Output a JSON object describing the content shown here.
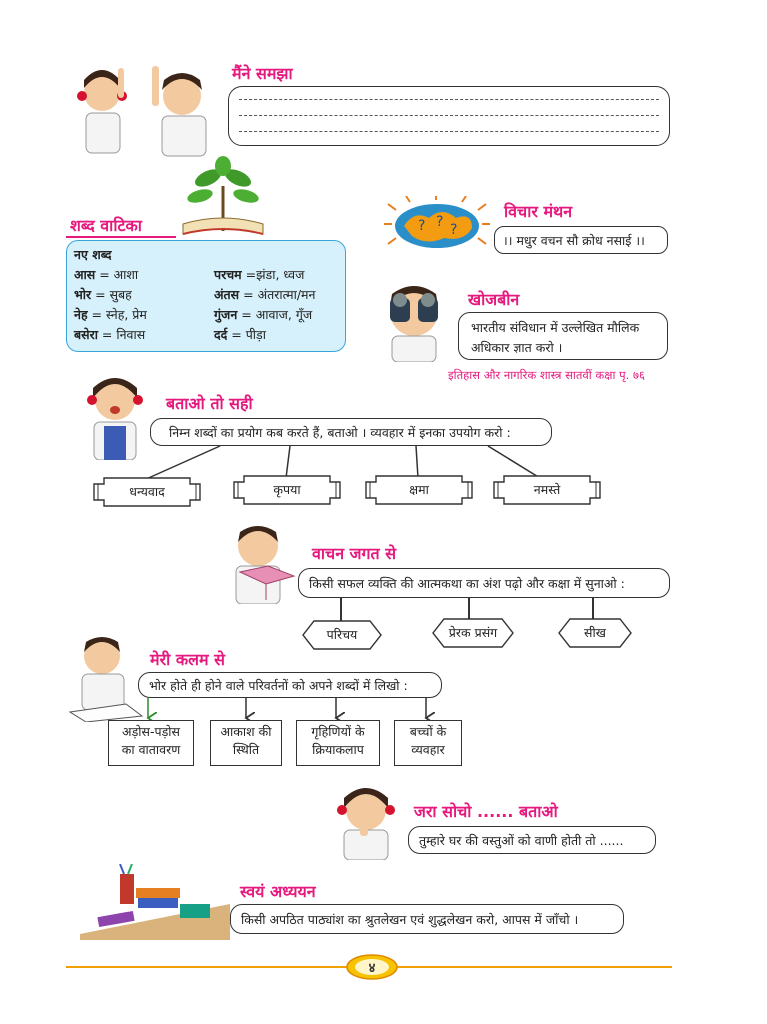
{
  "maine_samjha": {
    "heading": "मैंने समझा"
  },
  "shabd_vatika": {
    "heading": "शब्द वाटिका",
    "box_title": "नए शब्द",
    "words": [
      {
        "word": "आस",
        "meaning": "आशा"
      },
      {
        "word": "भोर",
        "meaning": "सुबह"
      },
      {
        "word": "नेह",
        "meaning": "स्नेह, प्रेम"
      },
      {
        "word": "बसेरा",
        "meaning": "निवास"
      },
      {
        "word": "परचम",
        "meaning": "झंडा, ध्वज"
      },
      {
        "word": "अंतस",
        "meaning": "अंतरात्मा/मन"
      },
      {
        "word": "गुंजन",
        "meaning": "आवाज, गूँज"
      },
      {
        "word": "दर्द",
        "meaning": "पीड़ा"
      }
    ]
  },
  "vichar_manthan": {
    "heading": "विचार मंथन",
    "text": "।। मधुर वचन सौ क्रोध नसाई ।।"
  },
  "khojbeen": {
    "heading": "खोजबीन",
    "line1": "भारतीय संविधान में उल्लेखित मौलिक",
    "line2": "अधिकार ज्ञात करो ।",
    "reference": "इतिहास और नागरिक शास्त्र सातवीं कक्षा पृ. ७६"
  },
  "batao_to_sahi": {
    "heading": "बताओ तो सही",
    "instruction": "निम्न शब्दों का प्रयोग कब करते हैं, बताओ । व्यवहार में इनका उपयोग करो :",
    "words": [
      "धन्यवाद",
      "कृपया",
      "क्षमा",
      "नमस्ते"
    ]
  },
  "vachan_jagat": {
    "heading": "वाचन जगत से",
    "instruction": "किसी सफल व्यक्ति की आत्मकथा का अंश पढ़ो और कक्षा में सुनाओ :",
    "items": [
      "परिचय",
      "प्रेरक प्रसंग",
      "सीख"
    ]
  },
  "meri_kalam": {
    "heading": "मेरी कलम से",
    "instruction": "भोर होते ही होने वाले परिवर्तनों को अपने शब्दों में लिखो :",
    "items": [
      {
        "l1": "अड़ोस-पड़ोस",
        "l2": "का वातावरण"
      },
      {
        "l1": "आकाश की",
        "l2": "स्थिति"
      },
      {
        "l1": "गृहिणियों के",
        "l2": "क्रियाकलाप"
      },
      {
        "l1": "बच्चों के",
        "l2": "व्यवहार"
      }
    ]
  },
  "jara_socho": {
    "heading": "जरा सोचो ...... बताओ",
    "text": "तुम्हारे घर की वस्तुओं को वाणी होती तो ......"
  },
  "swayam_adhyayan": {
    "heading": "स्वयं अध्ययन",
    "text": "किसी अपठित पाठ्यांश का श्रुतलेखन एवं शुद्धलेखन करो, आपस में जाँचो ।"
  },
  "footer": {
    "page_number": "४"
  },
  "colors": {
    "heading": "#e6197e",
    "vatika_bg": "#d6f1fb",
    "vatika_border": "#3aa6d8",
    "footer": "#f0a000"
  }
}
